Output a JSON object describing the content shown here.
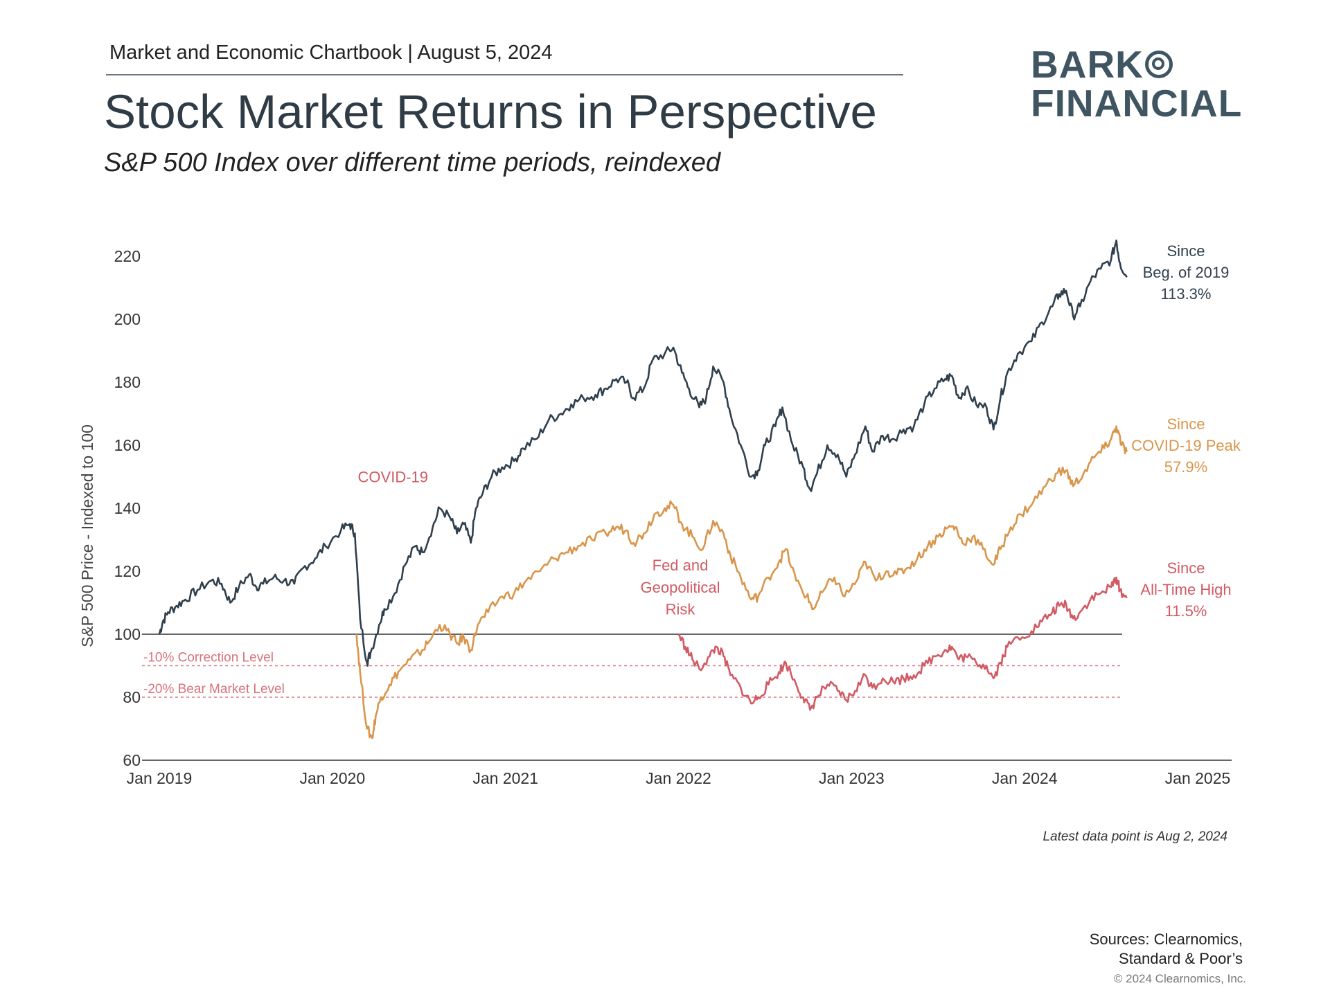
{
  "header": {
    "chartbook": "Market and Economic Chartbook | August 5, 2024",
    "title": "Stock Market Returns in Perspective",
    "subtitle": "S&P 500 Index over different time periods, reindexed"
  },
  "logo": {
    "line1": "BARK",
    "line2": "FINANCIAL"
  },
  "colors": {
    "beg2019": "#2f3f4c",
    "covid": "#d9954a",
    "ath": "#d15a63",
    "label": "#d15a63",
    "axis": "#333333"
  },
  "chart_data": {
    "type": "line",
    "ylabel": "S&P 500 Price - Indexed to 100",
    "ylim": [
      60,
      230
    ],
    "yticks": [
      "60",
      "80",
      "100",
      "120",
      "140",
      "160",
      "180",
      "200",
      "220"
    ],
    "xlim": [
      2019.0,
      2025.0
    ],
    "xticks": [
      "Jan 2019",
      "Jan 2020",
      "Jan 2021",
      "Jan 2022",
      "Jan 2023",
      "Jan 2024",
      "Jan 2025"
    ],
    "reference_lines": [
      {
        "value": 100,
        "label": ""
      },
      {
        "value": 90,
        "label": "-10% Correction Level"
      },
      {
        "value": 80,
        "label": "-20% Bear Market Level"
      }
    ],
    "annotations": [
      {
        "text": "COVID-19",
        "x": 2020.35,
        "y": 150
      },
      {
        "text": "Fed and",
        "x": 2022.01,
        "y": 122
      },
      {
        "text": "Geopolitical",
        "x": 2022.01,
        "y": 115
      },
      {
        "text": "Risk",
        "x": 2022.01,
        "y": 108
      }
    ],
    "series": [
      {
        "name": "Since Beg. of 2019",
        "end_label": [
          "Since",
          "Beg. of 2019",
          "113.3%"
        ],
        "points": [
          [
            2019.0,
            100
          ],
          [
            2019.02,
            104
          ],
          [
            2019.05,
            107
          ],
          [
            2019.1,
            109
          ],
          [
            2019.15,
            111
          ],
          [
            2019.22,
            114
          ],
          [
            2019.3,
            117
          ],
          [
            2019.36,
            116
          ],
          [
            2019.41,
            110
          ],
          [
            2019.46,
            115
          ],
          [
            2019.52,
            119
          ],
          [
            2019.56,
            115
          ],
          [
            2019.6,
            116
          ],
          [
            2019.66,
            118
          ],
          [
            2019.72,
            117
          ],
          [
            2019.78,
            116
          ],
          [
            2019.83,
            121
          ],
          [
            2019.9,
            124
          ],
          [
            2019.96,
            128
          ],
          [
            2020.05,
            133
          ],
          [
            2020.1,
            135
          ],
          [
            2020.13,
            132
          ],
          [
            2020.16,
            105
          ],
          [
            2020.2,
            91
          ],
          [
            2020.22,
            94
          ],
          [
            2020.27,
            103
          ],
          [
            2020.3,
            108
          ],
          [
            2020.36,
            113
          ],
          [
            2020.42,
            122
          ],
          [
            2020.48,
            128
          ],
          [
            2020.52,
            126
          ],
          [
            2020.58,
            134
          ],
          [
            2020.62,
            140
          ],
          [
            2020.68,
            137
          ],
          [
            2020.72,
            132
          ],
          [
            2020.76,
            135
          ],
          [
            2020.8,
            129
          ],
          [
            2020.83,
            140
          ],
          [
            2020.87,
            145
          ],
          [
            2020.92,
            150
          ],
          [
            2020.98,
            153
          ],
          [
            2021.05,
            155
          ],
          [
            2021.1,
            159
          ],
          [
            2021.18,
            162
          ],
          [
            2021.25,
            168
          ],
          [
            2021.32,
            170
          ],
          [
            2021.38,
            173
          ],
          [
            2021.45,
            175
          ],
          [
            2021.52,
            176
          ],
          [
            2021.58,
            178
          ],
          [
            2021.64,
            181
          ],
          [
            2021.7,
            180
          ],
          [
            2021.74,
            175
          ],
          [
            2021.8,
            178
          ],
          [
            2021.85,
            187
          ],
          [
            2021.92,
            189
          ],
          [
            2021.97,
            191
          ],
          [
            2022.02,
            183
          ],
          [
            2022.06,
            178
          ],
          [
            2022.12,
            172
          ],
          [
            2022.16,
            175
          ],
          [
            2022.2,
            185
          ],
          [
            2022.26,
            180
          ],
          [
            2022.3,
            170
          ],
          [
            2022.36,
            160
          ],
          [
            2022.42,
            150
          ],
          [
            2022.46,
            152
          ],
          [
            2022.5,
            160
          ],
          [
            2022.56,
            166
          ],
          [
            2022.6,
            172
          ],
          [
            2022.66,
            160
          ],
          [
            2022.72,
            153
          ],
          [
            2022.76,
            146
          ],
          [
            2022.8,
            151
          ],
          [
            2022.86,
            160
          ],
          [
            2022.92,
            157
          ],
          [
            2022.97,
            150
          ],
          [
            2023.02,
            157
          ],
          [
            2023.08,
            166
          ],
          [
            2023.12,
            158
          ],
          [
            2023.18,
            163
          ],
          [
            2023.24,
            162
          ],
          [
            2023.3,
            165
          ],
          [
            2023.36,
            166
          ],
          [
            2023.42,
            173
          ],
          [
            2023.48,
            178
          ],
          [
            2023.54,
            181
          ],
          [
            2023.58,
            182
          ],
          [
            2023.62,
            175
          ],
          [
            2023.66,
            178
          ],
          [
            2023.72,
            173
          ],
          [
            2023.78,
            172
          ],
          [
            2023.82,
            165
          ],
          [
            2023.86,
            175
          ],
          [
            2023.9,
            183
          ],
          [
            2023.96,
            189
          ],
          [
            2024.04,
            193
          ],
          [
            2024.1,
            199
          ],
          [
            2024.16,
            204
          ],
          [
            2024.2,
            208
          ],
          [
            2024.24,
            209
          ],
          [
            2024.28,
            201
          ],
          [
            2024.32,
            204
          ],
          [
            2024.38,
            212
          ],
          [
            2024.44,
            216
          ],
          [
            2024.5,
            219
          ],
          [
            2024.53,
            225
          ],
          [
            2024.55,
            218
          ],
          [
            2024.59,
            213.3
          ]
        ]
      },
      {
        "name": "Since COVID-19 Peak",
        "end_label": [
          "Since",
          "COVID-19 Peak",
          "57.9%"
        ],
        "points": [
          [
            2020.14,
            100
          ],
          [
            2020.16,
            88
          ],
          [
            2020.2,
            70
          ],
          [
            2020.23,
            67
          ],
          [
            2020.25,
            74
          ],
          [
            2020.28,
            80
          ],
          [
            2020.33,
            84
          ],
          [
            2020.38,
            88
          ],
          [
            2020.45,
            92
          ],
          [
            2020.5,
            94
          ],
          [
            2020.55,
            97
          ],
          [
            2020.62,
            103
          ],
          [
            2020.68,
            100
          ],
          [
            2020.72,
            97
          ],
          [
            2020.76,
            99
          ],
          [
            2020.8,
            95
          ],
          [
            2020.84,
            103
          ],
          [
            2020.9,
            107
          ],
          [
            2020.98,
            112
          ],
          [
            2021.05,
            113
          ],
          [
            2021.12,
            117
          ],
          [
            2021.2,
            120
          ],
          [
            2021.28,
            124
          ],
          [
            2021.35,
            126
          ],
          [
            2021.42,
            128
          ],
          [
            2021.5,
            130
          ],
          [
            2021.58,
            132
          ],
          [
            2021.64,
            134
          ],
          [
            2021.7,
            133
          ],
          [
            2021.74,
            129
          ],
          [
            2021.8,
            132
          ],
          [
            2021.86,
            138
          ],
          [
            2021.92,
            140
          ],
          [
            2021.97,
            141
          ],
          [
            2022.02,
            135
          ],
          [
            2022.08,
            131
          ],
          [
            2022.14,
            127
          ],
          [
            2022.2,
            136
          ],
          [
            2022.26,
            132
          ],
          [
            2022.3,
            125
          ],
          [
            2022.36,
            118
          ],
          [
            2022.42,
            111
          ],
          [
            2022.46,
            112
          ],
          [
            2022.52,
            118
          ],
          [
            2022.58,
            123
          ],
          [
            2022.62,
            127
          ],
          [
            2022.68,
            117
          ],
          [
            2022.74,
            112
          ],
          [
            2022.78,
            108
          ],
          [
            2022.84,
            114
          ],
          [
            2022.9,
            118
          ],
          [
            2022.96,
            112
          ],
          [
            2023.03,
            117
          ],
          [
            2023.08,
            123
          ],
          [
            2023.14,
            117
          ],
          [
            2023.2,
            120
          ],
          [
            2023.26,
            119
          ],
          [
            2023.32,
            121
          ],
          [
            2023.38,
            124
          ],
          [
            2023.44,
            128
          ],
          [
            2023.5,
            131
          ],
          [
            2023.56,
            134
          ],
          [
            2023.6,
            134
          ],
          [
            2023.64,
            129
          ],
          [
            2023.7,
            131
          ],
          [
            2023.76,
            127
          ],
          [
            2023.82,
            122
          ],
          [
            2023.86,
            127
          ],
          [
            2023.92,
            134
          ],
          [
            2023.98,
            138
          ],
          [
            2024.05,
            142
          ],
          [
            2024.12,
            147
          ],
          [
            2024.18,
            151
          ],
          [
            2024.24,
            152
          ],
          [
            2024.28,
            147
          ],
          [
            2024.34,
            151
          ],
          [
            2024.4,
            156
          ],
          [
            2024.46,
            159
          ],
          [
            2024.5,
            162
          ],
          [
            2024.53,
            166
          ],
          [
            2024.56,
            160
          ],
          [
            2024.59,
            157.9
          ]
        ]
      },
      {
        "name": "Since All-Time High",
        "end_label": [
          "Since",
          "All-Time High",
          "11.5%"
        ],
        "points": [
          [
            2022.0,
            100
          ],
          [
            2022.04,
            96
          ],
          [
            2022.08,
            92
          ],
          [
            2022.12,
            89
          ],
          [
            2022.18,
            93
          ],
          [
            2022.22,
            96
          ],
          [
            2022.26,
            93
          ],
          [
            2022.3,
            87
          ],
          [
            2022.36,
            83
          ],
          [
            2022.42,
            78
          ],
          [
            2022.46,
            80
          ],
          [
            2022.52,
            84
          ],
          [
            2022.58,
            88
          ],
          [
            2022.62,
            91
          ],
          [
            2022.68,
            84
          ],
          [
            2022.72,
            80
          ],
          [
            2022.76,
            76
          ],
          [
            2022.8,
            80
          ],
          [
            2022.86,
            84
          ],
          [
            2022.92,
            82
          ],
          [
            2022.97,
            79
          ],
          [
            2023.02,
            82
          ],
          [
            2023.08,
            87
          ],
          [
            2023.12,
            83
          ],
          [
            2023.18,
            86
          ],
          [
            2023.24,
            85
          ],
          [
            2023.3,
            86
          ],
          [
            2023.36,
            87
          ],
          [
            2023.42,
            90
          ],
          [
            2023.48,
            93
          ],
          [
            2023.54,
            95
          ],
          [
            2023.58,
            96
          ],
          [
            2023.62,
            92
          ],
          [
            2023.66,
            93
          ],
          [
            2023.72,
            91
          ],
          [
            2023.78,
            90
          ],
          [
            2023.82,
            86
          ],
          [
            2023.86,
            91
          ],
          [
            2023.9,
            96
          ],
          [
            2023.96,
            99
          ],
          [
            2024.04,
            101
          ],
          [
            2024.1,
            104
          ],
          [
            2024.16,
            107
          ],
          [
            2024.2,
            109
          ],
          [
            2024.24,
            109.5
          ],
          [
            2024.28,
            105
          ],
          [
            2024.32,
            107
          ],
          [
            2024.38,
            111
          ],
          [
            2024.44,
            113
          ],
          [
            2024.5,
            115
          ],
          [
            2024.53,
            118
          ],
          [
            2024.55,
            114
          ],
          [
            2024.59,
            111.5
          ]
        ]
      }
    ]
  },
  "footer": {
    "latest": "Latest data point is Aug 2, 2024",
    "sources_line1": "Sources: Clearnomics,",
    "sources_line2": "Standard & Poor’s",
    "copyright": "© 2024 Clearnomics, Inc."
  }
}
